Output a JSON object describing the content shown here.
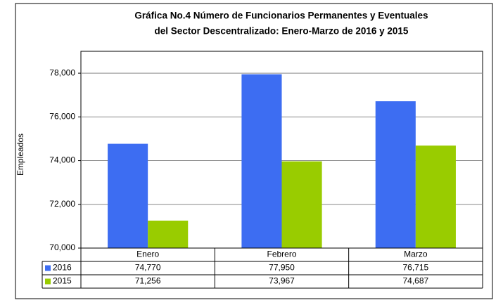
{
  "chart_data": {
    "type": "bar",
    "title": [
      "Gráfica No.4  Número de Funcionarios Permanentes y Eventuales",
      "del Sector Descentralizado: Enero-Marzo de 2016 y 2015"
    ],
    "y_label": "Empleados",
    "categories": [
      "Enero",
      "Febrero",
      "Marzo"
    ],
    "series": [
      {
        "name": "2016",
        "color": "#3d6df2",
        "values": [
          74770,
          77950,
          76715
        ],
        "value_labels": [
          "74,770",
          "77,950",
          "76,715"
        ]
      },
      {
        "name": "2015",
        "color": "#99cc00",
        "values": [
          71256,
          73967,
          74687
        ],
        "value_labels": [
          "71,256",
          "73,967",
          "74,687"
        ]
      }
    ],
    "ylim": [
      70000,
      79000
    ],
    "yticks": [
      {
        "value": 70000,
        "label": "70,000"
      },
      {
        "value": 72000,
        "label": "72,000"
      },
      {
        "value": 74000,
        "label": "74,000"
      },
      {
        "value": 76000,
        "label": "76,000"
      },
      {
        "value": 78000,
        "label": "78,000"
      }
    ],
    "grid": true
  }
}
